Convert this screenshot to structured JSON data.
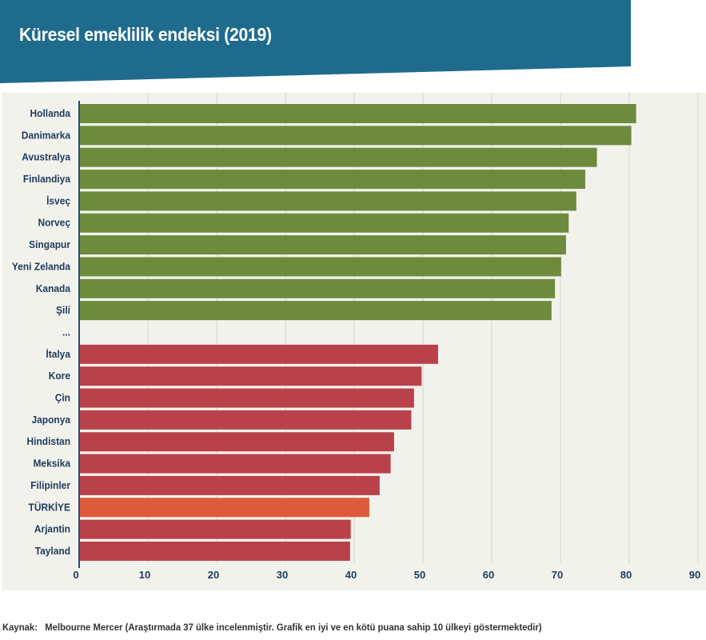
{
  "header": {
    "title": "Küresel emeklilik endeksi (2019)",
    "band_color": "#1f6b8e",
    "title_color": "#ffffff"
  },
  "source": {
    "label": "Kaynak:",
    "text": "Melbourne Mercer (Araştırmada 37 ülke incelenmiştir. Grafik en iyi ve en kötü puana sahip 10 ülkeyi göstermektedir)"
  },
  "colors": {
    "top": "#6e8b3d",
    "bottom": "#b9424a",
    "highlight": "#dd5b3b",
    "panel": "#f2f2ed",
    "grid": "#d5d5cf",
    "axis": "#1f4e79"
  },
  "chart_data": {
    "type": "bar",
    "orientation": "horizontal",
    "categories": [
      "Hollanda",
      "Danimarka",
      "Avustralya",
      "Finlandiya",
      "İsveç",
      "Norveç",
      "Singapur",
      "Yeni Zelanda",
      "Kanada",
      "Şili",
      "...",
      "İtalya",
      "Kore",
      "Çin",
      "Japonya",
      "Hindistan",
      "Meksika",
      "Filipinler",
      "TÜRKİYE",
      "Arjantin",
      "Tayland"
    ],
    "values": [
      81.0,
      80.3,
      75.3,
      73.6,
      72.3,
      71.2,
      70.8,
      70.1,
      69.2,
      68.7,
      null,
      52.2,
      49.8,
      48.7,
      48.3,
      45.8,
      45.3,
      43.7,
      42.2,
      39.5,
      39.4
    ],
    "groups": [
      "top",
      "top",
      "top",
      "top",
      "top",
      "top",
      "top",
      "top",
      "top",
      "top",
      "gap",
      "bottom",
      "bottom",
      "bottom",
      "bottom",
      "bottom",
      "bottom",
      "bottom",
      "highlight",
      "bottom",
      "bottom"
    ],
    "title": "Küresel emeklilik endeksi (2019)",
    "xlabel": "",
    "ylabel": "",
    "xlim": [
      0,
      90
    ],
    "xticks": [
      0,
      10,
      20,
      30,
      40,
      50,
      60,
      70,
      80,
      90
    ],
    "grid": "vertical",
    "legend": "none"
  }
}
